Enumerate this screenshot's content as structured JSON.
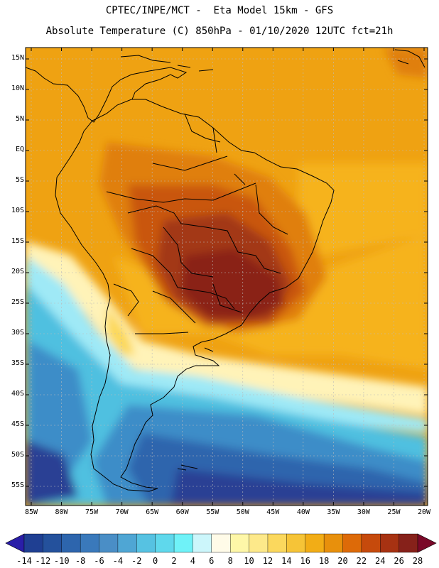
{
  "header": {
    "line1": "CPTEC/INPE/MCT -  Eta Model 15km - GFS",
    "line2": "Absolute Temperature (C) 850hPa - 01/10/2020 12UTC fct=21h"
  },
  "map": {
    "lat_labels": [
      "15N",
      "10N",
      "5N",
      "EQ",
      "5S",
      "10S",
      "15S",
      "20S",
      "25S",
      "30S",
      "35S",
      "40S",
      "45S",
      "50S",
      "55S"
    ],
    "lon_labels": [
      "85W",
      "80W",
      "75W",
      "70W",
      "65W",
      "60W",
      "55W",
      "50W",
      "45W",
      "40W",
      "35W",
      "30W",
      "25W",
      "20W"
    ],
    "region": "South America"
  },
  "colorbar": {
    "labels": [
      "-14",
      "-12",
      "-10",
      "-8",
      "-6",
      "-4",
      "-2",
      "0",
      "2",
      "4",
      "6",
      "8",
      "10",
      "12",
      "14",
      "16",
      "18",
      "20",
      "22",
      "24",
      "26",
      "28"
    ],
    "colors": {
      "under": "#2a1ea8",
      "bins": [
        "#1f3f92",
        "#24519c",
        "#2d65ad",
        "#3a79bb",
        "#4a8ec6",
        "#4fa6d4",
        "#56c2e2",
        "#5fd8ec",
        "#6ff2f8",
        "#ccf6fb",
        "#fffbe8",
        "#fef7a8",
        "#fde98a",
        "#fbd85d",
        "#f6c437",
        "#f2ad16",
        "#e8900c",
        "#dd6a08",
        "#c64a0c",
        "#a73212",
        "#86211a"
      ],
      "over": "#7a0828"
    }
  },
  "field_colors": {
    "deep_blue": "#2c3f94",
    "blue": "#2d65ad",
    "mid_blue": "#3c8dc8",
    "cyan": "#4fc0e0",
    "light_cyan": "#9fe9f6",
    "cream": "#fff3b8",
    "yellow": "#fcd85a",
    "light_orange": "#f6b31e",
    "orange": "#efa212",
    "dark_orange": "#e07f10",
    "rust": "#c9560f",
    "brown": "#a33814",
    "dark_brown": "#8a2412",
    "land_line": "#000000",
    "grid_line": "#bbbbbb"
  }
}
